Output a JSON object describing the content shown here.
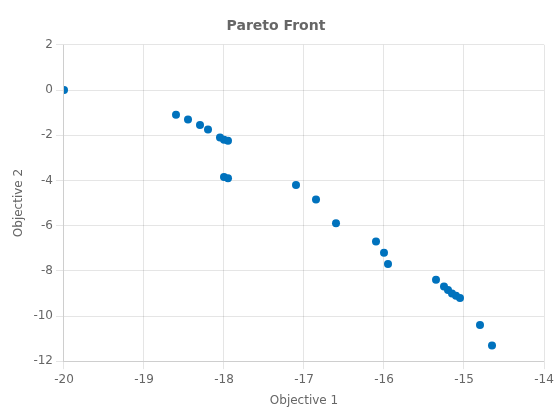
{
  "chart_data": {
    "type": "scatter",
    "title": "Pareto Front",
    "xlabel": "Objective 1",
    "ylabel": "Objective 2",
    "x": [
      -20.0,
      -18.6,
      -18.45,
      -18.3,
      -18.2,
      -18.05,
      -18.0,
      -17.95,
      -18.0,
      -17.95,
      -17.1,
      -16.85,
      -16.6,
      -16.1,
      -16.0,
      -15.95,
      -15.35,
      -15.25,
      -15.2,
      -15.15,
      -15.1,
      -15.05,
      -14.8,
      -14.65
    ],
    "values": [
      0.0,
      -1.1,
      -1.3,
      -1.55,
      -1.75,
      -2.1,
      -2.2,
      -2.25,
      -3.85,
      -3.9,
      -4.2,
      -4.85,
      -5.9,
      -6.7,
      -7.2,
      -7.7,
      -8.4,
      -8.7,
      -8.85,
      -9.0,
      -9.1,
      -9.2,
      -10.4,
      -11.3
    ],
    "color": "#0072BD",
    "xlim": [
      -20,
      -14
    ],
    "ylim": [
      -12,
      2
    ],
    "xticks": [
      -20,
      -19,
      -18,
      -17,
      -16,
      -15,
      -14
    ],
    "yticks": [
      -12,
      -10,
      -8,
      -6,
      -4,
      -2,
      0,
      2
    ],
    "grid": true
  }
}
